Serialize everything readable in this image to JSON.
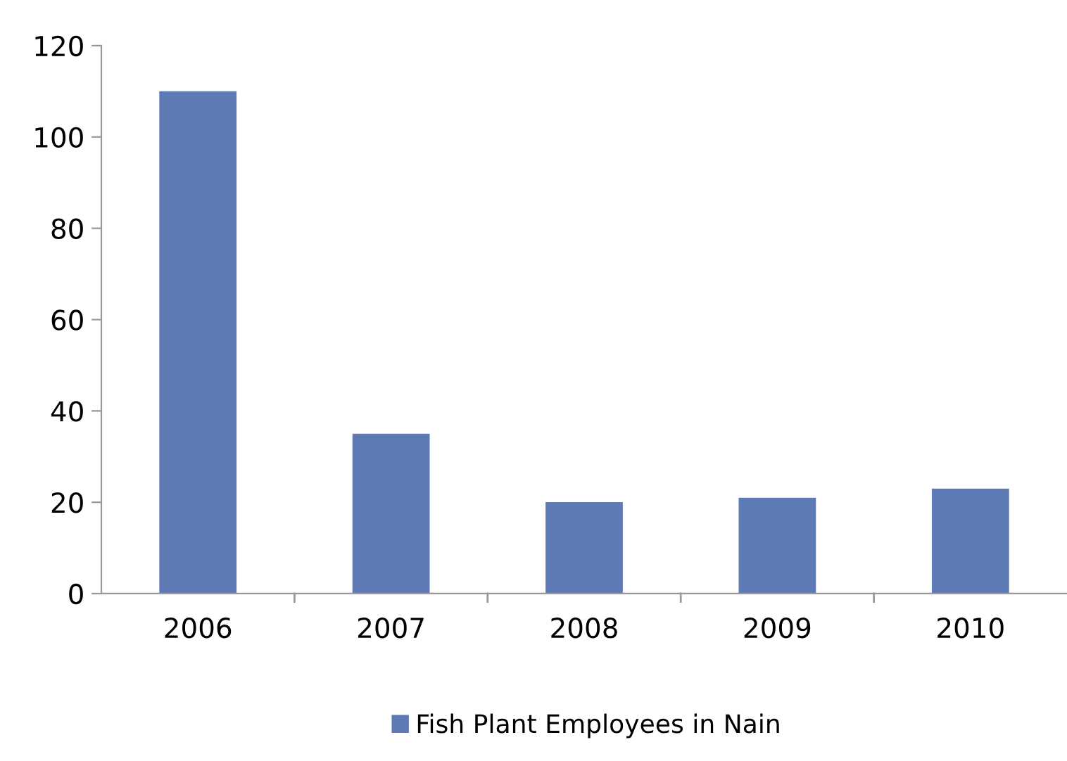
{
  "chart_data": {
    "type": "bar",
    "categories": [
      "2006",
      "2007",
      "2008",
      "2009",
      "2010"
    ],
    "series": [
      {
        "name": "Fish Plant Employees in Nain",
        "color": "#5d7ab5",
        "values": [
          110,
          35,
          20,
          21,
          23
        ]
      }
    ],
    "ylim": [
      0,
      120
    ],
    "yticks": [
      0,
      20,
      40,
      60,
      80,
      100,
      120
    ],
    "grid": false,
    "legend": "bottom"
  }
}
